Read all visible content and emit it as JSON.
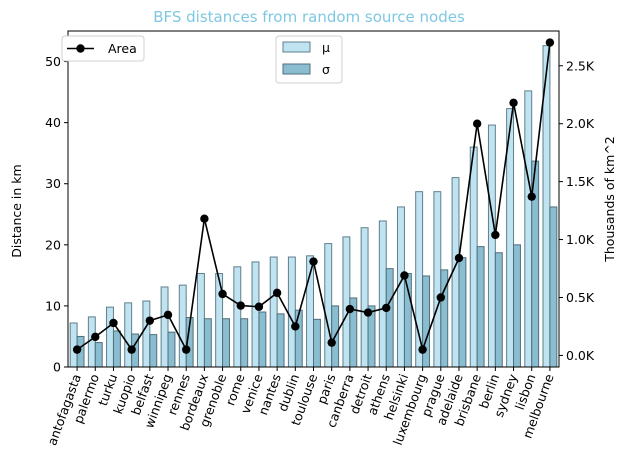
{
  "chart_data": {
    "type": "bar",
    "title": "BFS distances from random source nodes",
    "title_color": "#7ec8e3",
    "ylabel": "Distance in km",
    "y2label": "Thousands of km^2",
    "ylim": [
      0,
      55
    ],
    "yticks": [
      0,
      10,
      20,
      30,
      40,
      50
    ],
    "y2lim": [
      -0.1,
      2.8
    ],
    "y2ticks": [
      0.0,
      0.5,
      1.0,
      1.5,
      2.0,
      2.5
    ],
    "y2ticklabels": [
      "0.0K",
      "0.5K",
      "1.0K",
      "1.5K",
      "2.0K",
      "2.5K"
    ],
    "categories": [
      "antofagasta",
      "palermo",
      "turku",
      "kuopio",
      "belfast",
      "winnipeg",
      "rennes",
      "bordeaux",
      "grenoble",
      "rome",
      "venice",
      "nantes",
      "dublin",
      "toulouse",
      "paris",
      "canberra",
      "detroit",
      "athens",
      "helsinki",
      "luxembourg",
      "prague",
      "adelaide",
      "brisbane",
      "berlin",
      "sydney",
      "lisbon",
      "melbourne"
    ],
    "series": [
      {
        "name": "μ",
        "kind": "bar",
        "color": "#bfe3f0",
        "values": [
          7.2,
          8.2,
          9.8,
          10.5,
          10.8,
          13.1,
          13.4,
          15.3,
          15.3,
          16.4,
          17.2,
          18.0,
          18.0,
          18.2,
          20.2,
          21.3,
          22.8,
          23.9,
          26.2,
          28.7,
          28.7,
          31.0,
          36.0,
          39.6,
          42.3,
          45.2,
          52.6
        ]
      },
      {
        "name": "σ",
        "kind": "bar",
        "color": "#8bbdd0",
        "values": [
          5.0,
          4.0,
          5.9,
          5.4,
          5.3,
          5.7,
          8.1,
          7.9,
          7.9,
          7.9,
          9.0,
          8.7,
          9.3,
          7.8,
          10.0,
          11.3,
          10.0,
          16.1,
          15.3,
          14.9,
          15.9,
          17.9,
          19.7,
          18.7,
          20.0,
          33.7,
          26.2
        ]
      },
      {
        "name": "Area",
        "kind": "line",
        "color": "#000000",
        "values": [
          0.05,
          0.16,
          0.28,
          0.05,
          0.3,
          0.35,
          0.05,
          1.18,
          0.53,
          0.43,
          0.42,
          0.54,
          0.25,
          0.81,
          0.11,
          0.4,
          0.37,
          0.41,
          0.69,
          0.05,
          0.5,
          0.84,
          2.0,
          1.04,
          2.18,
          1.37,
          2.7
        ]
      }
    ],
    "legend_left": {
      "placement": "upper-left"
    },
    "legend_center": {
      "placement": "upper-center"
    },
    "grid": false
  }
}
